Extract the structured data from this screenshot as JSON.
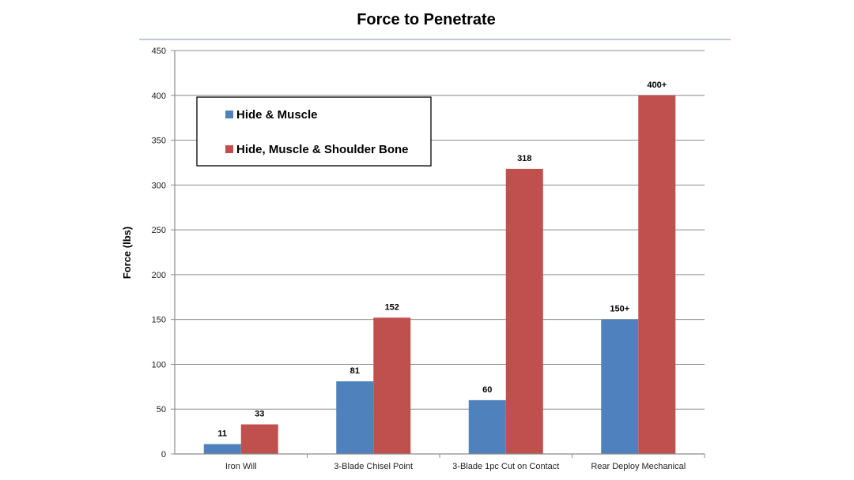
{
  "chart_data": {
    "type": "bar",
    "title": "Force to Penetrate",
    "ylabel": "Force (lbs)",
    "xlabel": "",
    "ylim": [
      0,
      450
    ],
    "yticks": [
      0,
      50,
      100,
      150,
      200,
      250,
      300,
      350,
      400,
      450
    ],
    "grid": true,
    "legend_position": "top-left",
    "categories": [
      "Iron Will",
      "3-Blade Chisel Point",
      "3-Blade 1pc Cut on Contact",
      "Rear Deploy Mechanical"
    ],
    "series": [
      {
        "name": "Hide & Muscle",
        "color": "#4f81bd",
        "values": [
          11,
          81,
          60,
          150
        ],
        "labels": [
          "11",
          "81",
          "60",
          "150+"
        ]
      },
      {
        "name": "Hide, Muscle & Shoulder Bone",
        "color": "#c0504d",
        "values": [
          33,
          152,
          318,
          400
        ],
        "labels": [
          "33",
          "152",
          "318",
          "400+"
        ]
      }
    ]
  }
}
